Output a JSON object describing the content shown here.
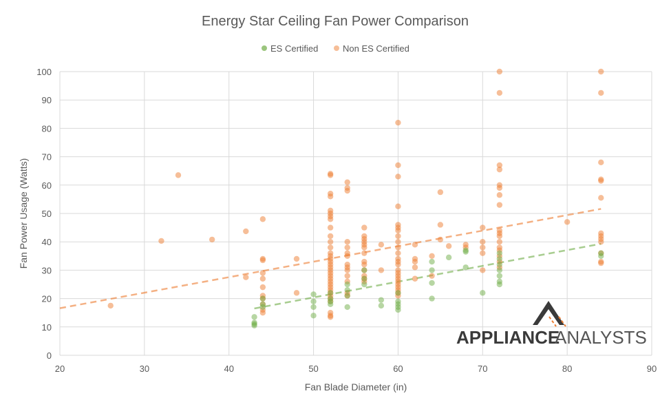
{
  "chart_data": {
    "type": "scatter",
    "title": "Energy Star Ceiling Fan Power Comparison",
    "xlabel": "Fan Blade Diameter (in)",
    "ylabel": "Fan Power Usage (Watts)",
    "xlim": [
      20,
      90
    ],
    "ylim": [
      0,
      100
    ],
    "xticks": [
      20,
      30,
      40,
      50,
      60,
      70,
      80,
      90
    ],
    "yticks": [
      0,
      10,
      20,
      30,
      40,
      50,
      60,
      70,
      80,
      90,
      100
    ],
    "grid": true,
    "legend_position": "top",
    "series": [
      {
        "name": "ES Certified",
        "color": "#70AD47",
        "points": [
          [
            43,
            13.5
          ],
          [
            43,
            11.5
          ],
          [
            43,
            11
          ],
          [
            43,
            10.5
          ],
          [
            44,
            20
          ],
          [
            44,
            18
          ],
          [
            44,
            17
          ],
          [
            50,
            21.5
          ],
          [
            50,
            19
          ],
          [
            50,
            17
          ],
          [
            50,
            14
          ],
          [
            52,
            22
          ],
          [
            52,
            20
          ],
          [
            52,
            19
          ],
          [
            52,
            18
          ],
          [
            54,
            25
          ],
          [
            54,
            23
          ],
          [
            54,
            21
          ],
          [
            54,
            17
          ],
          [
            56,
            30
          ],
          [
            56,
            27
          ],
          [
            56,
            25
          ],
          [
            58,
            19.5
          ],
          [
            58,
            17.5
          ],
          [
            60,
            22
          ],
          [
            60,
            19
          ],
          [
            60,
            18
          ],
          [
            60,
            17
          ],
          [
            60,
            16
          ],
          [
            64,
            33
          ],
          [
            64,
            30
          ],
          [
            64,
            25.5
          ],
          [
            64,
            20
          ],
          [
            66,
            34.5
          ],
          [
            68,
            37
          ],
          [
            68,
            36.5
          ],
          [
            68,
            31
          ],
          [
            70,
            22
          ],
          [
            72,
            36
          ],
          [
            72,
            34
          ],
          [
            72,
            32
          ],
          [
            72,
            30
          ],
          [
            72,
            28
          ],
          [
            72,
            26
          ],
          [
            72,
            25
          ],
          [
            84,
            36
          ],
          [
            84,
            35
          ]
        ],
        "trendline": [
          [
            43,
            16.5
          ],
          [
            84,
            39.3
          ]
        ]
      },
      {
        "name": "Non ES Certified",
        "color": "#ED7D31",
        "points": [
          [
            26,
            17.5
          ],
          [
            32,
            40.3
          ],
          [
            34,
            63.5
          ],
          [
            38,
            40.8
          ],
          [
            42,
            43.7
          ],
          [
            42,
            27.5
          ],
          [
            44,
            48
          ],
          [
            44,
            34
          ],
          [
            44,
            33.5
          ],
          [
            44,
            29
          ],
          [
            44,
            27
          ],
          [
            44,
            24
          ],
          [
            44,
            21
          ],
          [
            44,
            20
          ],
          [
            44,
            18
          ],
          [
            44,
            16
          ],
          [
            44,
            15
          ],
          [
            48,
            34
          ],
          [
            48,
            22
          ],
          [
            52,
            64
          ],
          [
            52,
            63.5
          ],
          [
            52,
            57
          ],
          [
            52,
            56
          ],
          [
            52,
            51
          ],
          [
            52,
            50
          ],
          [
            52,
            49
          ],
          [
            52,
            48
          ],
          [
            52,
            45
          ],
          [
            52,
            42
          ],
          [
            52,
            40
          ],
          [
            52,
            38
          ],
          [
            52,
            36
          ],
          [
            52,
            35
          ],
          [
            52,
            34
          ],
          [
            52,
            33
          ],
          [
            52,
            32
          ],
          [
            52,
            31
          ],
          [
            52,
            30
          ],
          [
            52,
            29
          ],
          [
            52,
            28
          ],
          [
            52,
            27
          ],
          [
            52,
            26
          ],
          [
            52,
            25
          ],
          [
            52,
            24
          ],
          [
            52,
            23
          ],
          [
            52,
            22
          ],
          [
            52,
            21
          ],
          [
            52,
            20
          ],
          [
            52,
            19
          ],
          [
            52,
            15
          ],
          [
            52,
            14
          ],
          [
            52,
            13.5
          ],
          [
            54,
            61
          ],
          [
            54,
            59
          ],
          [
            54,
            58
          ],
          [
            54,
            40
          ],
          [
            54,
            38
          ],
          [
            54,
            36
          ],
          [
            54,
            35
          ],
          [
            54,
            32
          ],
          [
            54,
            31
          ],
          [
            54,
            30
          ],
          [
            54,
            28
          ],
          [
            54,
            26
          ],
          [
            54,
            22
          ],
          [
            54,
            21
          ],
          [
            56,
            45
          ],
          [
            56,
            42
          ],
          [
            56,
            41
          ],
          [
            56,
            40
          ],
          [
            56,
            39
          ],
          [
            56,
            38
          ],
          [
            56,
            36
          ],
          [
            56,
            33
          ],
          [
            56,
            32
          ],
          [
            56,
            30
          ],
          [
            56,
            28
          ],
          [
            56,
            27
          ],
          [
            56,
            26
          ],
          [
            58,
            39
          ],
          [
            58,
            30
          ],
          [
            60,
            82
          ],
          [
            60,
            67
          ],
          [
            60,
            63
          ],
          [
            60,
            52.5
          ],
          [
            60,
            46
          ],
          [
            60,
            45
          ],
          [
            60,
            44
          ],
          [
            60,
            42
          ],
          [
            60,
            40
          ],
          [
            60,
            38
          ],
          [
            60,
            36
          ],
          [
            60,
            34
          ],
          [
            60,
            33
          ],
          [
            60,
            32
          ],
          [
            60,
            30
          ],
          [
            60,
            29
          ],
          [
            60,
            28
          ],
          [
            60,
            27
          ],
          [
            60,
            26
          ],
          [
            60,
            25
          ],
          [
            60,
            24
          ],
          [
            60,
            23
          ],
          [
            60,
            22
          ],
          [
            60,
            21
          ],
          [
            62,
            39
          ],
          [
            62,
            34
          ],
          [
            62,
            33
          ],
          [
            62,
            31
          ],
          [
            62,
            27
          ],
          [
            64,
            35
          ],
          [
            64,
            28
          ],
          [
            65,
            57.5
          ],
          [
            65,
            46
          ],
          [
            65,
            40.8
          ],
          [
            66,
            38.5
          ],
          [
            68,
            39
          ],
          [
            68,
            38
          ],
          [
            70,
            45
          ],
          [
            70,
            40
          ],
          [
            70,
            38
          ],
          [
            70,
            36
          ],
          [
            70,
            30
          ],
          [
            72,
            100
          ],
          [
            72,
            92.5
          ],
          [
            72,
            67
          ],
          [
            72,
            65.5
          ],
          [
            72,
            60
          ],
          [
            72,
            59
          ],
          [
            72,
            56.5
          ],
          [
            72,
            53
          ],
          [
            72,
            44
          ],
          [
            72,
            43
          ],
          [
            72,
            42
          ],
          [
            72,
            40
          ],
          [
            72,
            38
          ],
          [
            72,
            37
          ],
          [
            72,
            35
          ],
          [
            72,
            33
          ],
          [
            72,
            31
          ],
          [
            80,
            47
          ],
          [
            84,
            100
          ],
          [
            84,
            92.5
          ],
          [
            84,
            68
          ],
          [
            84,
            62
          ],
          [
            84,
            61.5
          ],
          [
            84,
            55.5
          ],
          [
            84,
            43
          ],
          [
            84,
            42
          ],
          [
            84,
            41
          ],
          [
            84,
            40
          ],
          [
            84,
            36
          ],
          [
            84,
            33
          ],
          [
            84,
            32.5
          ]
        ],
        "trendline": [
          [
            20,
            16.6
          ],
          [
            84,
            51.6
          ]
        ]
      }
    ]
  },
  "watermark": {
    "text_bold": "APPLIANCE",
    "text_light": "ANALYSTS"
  }
}
